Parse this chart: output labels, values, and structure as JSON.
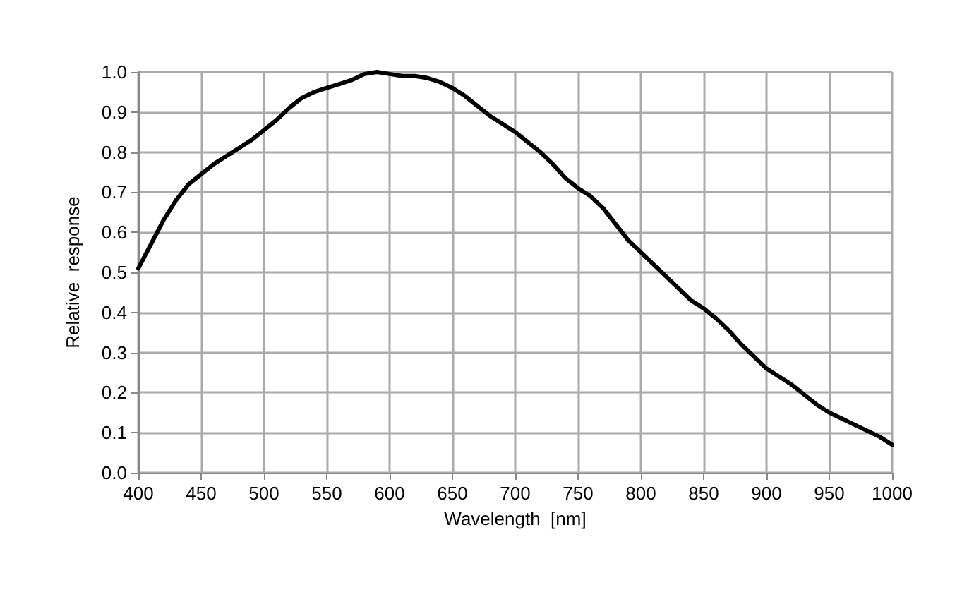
{
  "chart_data": {
    "type": "line",
    "xlabel": "Wavelength  [nm]",
    "ylabel": "Relative  response",
    "x": [
      400,
      410,
      420,
      430,
      440,
      450,
      460,
      470,
      480,
      490,
      500,
      510,
      520,
      530,
      540,
      550,
      560,
      570,
      580,
      590,
      600,
      610,
      620,
      630,
      640,
      650,
      660,
      670,
      680,
      690,
      700,
      710,
      720,
      730,
      740,
      750,
      760,
      770,
      780,
      790,
      800,
      810,
      820,
      830,
      840,
      850,
      860,
      870,
      880,
      890,
      900,
      910,
      920,
      930,
      940,
      950,
      960,
      970,
      980,
      990,
      1000
    ],
    "series": [
      {
        "color": "#000000",
        "values": [
          0.51,
          0.57,
          0.63,
          0.68,
          0.72,
          0.745,
          0.77,
          0.79,
          0.81,
          0.83,
          0.855,
          0.88,
          0.91,
          0.935,
          0.95,
          0.96,
          0.97,
          0.98,
          0.995,
          1.0,
          0.995,
          0.99,
          0.99,
          0.985,
          0.975,
          0.96,
          0.94,
          0.915,
          0.89,
          0.87,
          0.85,
          0.825,
          0.8,
          0.77,
          0.735,
          0.71,
          0.69,
          0.66,
          0.62,
          0.58,
          0.55,
          0.52,
          0.49,
          0.46,
          0.43,
          0.41,
          0.385,
          0.355,
          0.32,
          0.29,
          0.26,
          0.24,
          0.22,
          0.195,
          0.17,
          0.15,
          0.135,
          0.12,
          0.105,
          0.09,
          0.07
        ]
      }
    ],
    "xlim": [
      400,
      1000
    ],
    "xticks": [
      400,
      450,
      500,
      550,
      600,
      650,
      700,
      750,
      800,
      850,
      900,
      950,
      1000
    ],
    "ylim": [
      0,
      1
    ],
    "yticks": [
      {
        "value": 0,
        "label": "0.0"
      },
      0.1,
      0.2,
      0.3,
      0.4,
      0.5,
      0.6,
      0.7,
      0.8,
      0.9,
      {
        "value": 1,
        "label": "1.0"
      }
    ],
    "grid": true,
    "marker": "none",
    "line_style": "solid"
  }
}
